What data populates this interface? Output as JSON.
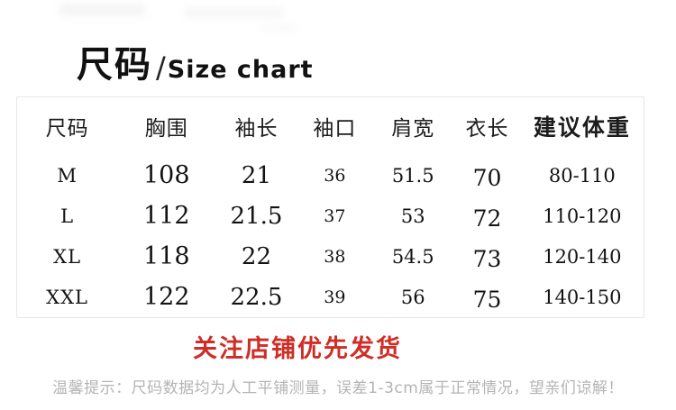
{
  "title": {
    "zh": "尺码",
    "slash": "/",
    "en": "Size chart"
  },
  "table": {
    "columns": [
      "尺码",
      "胸围",
      "袖长",
      "袖口",
      "肩宽",
      "衣长",
      "建议体重"
    ],
    "rows": [
      {
        "size": "M",
        "chest": "108",
        "sleeve": "21",
        "cuff": "36",
        "shoulder": "51.5",
        "length": "70",
        "weight": "80-110"
      },
      {
        "size": "L",
        "chest": "112",
        "sleeve": "21.5",
        "cuff": "37",
        "shoulder": "53",
        "length": "72",
        "weight": "110-120"
      },
      {
        "size": "XL",
        "chest": "118",
        "sleeve": "22",
        "cuff": "38",
        "shoulder": "54.5",
        "length": "73",
        "weight": "120-140"
      },
      {
        "size": "XXL",
        "chest": "122",
        "sleeve": "22.5",
        "cuff": "39",
        "shoulder": "56",
        "length": "75",
        "weight": "140-150"
      }
    ]
  },
  "notice": "关注店铺优先发货",
  "tip": "温馨提示：尺码数据均为人工平铺测量，误差1-3cm属于正常情况，望亲们谅解！",
  "colors": {
    "notice_red": "#cf2d26",
    "tip_gray": "#b4b4b4",
    "box_border": "#e7e7e7",
    "text": "#131313"
  }
}
